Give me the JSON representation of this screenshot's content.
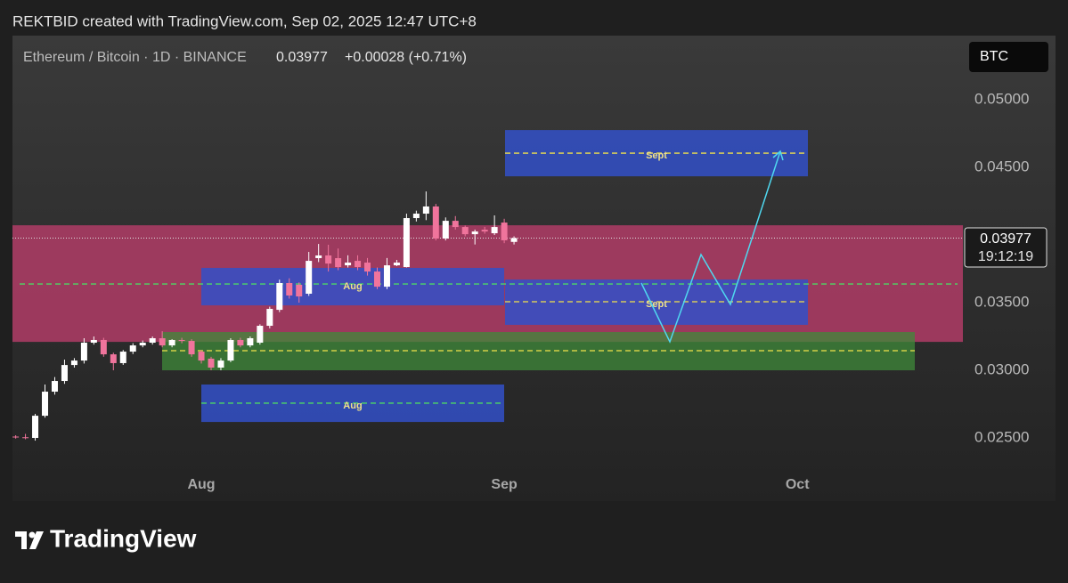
{
  "header": "REKTBID created with TradingView.com, Sep 02, 2025 12:47 UTC+8",
  "logo": "TradingView",
  "chart_data": {
    "type": "candlestick",
    "title": "Ethereum / Bitcoin · 1D · BINANCE",
    "last_price": 0.03977,
    "change_label": "+0.00028 (+0.71%)",
    "countdown": "19:12:19",
    "currency": "BTC",
    "up_color": "#ffffff",
    "down_color": "#f0749c",
    "categories": [
      null,
      null,
      null,
      null,
      null,
      null,
      null,
      null,
      null,
      null,
      null,
      null,
      null,
      null,
      null,
      null,
      null,
      null,
      null,
      "Aug",
      null,
      null,
      null,
      null,
      null,
      null,
      null,
      null,
      null,
      null,
      null,
      null,
      null,
      null,
      null,
      null,
      null,
      null,
      null,
      null,
      null,
      null,
      null,
      null,
      null,
      null,
      null,
      null,
      null,
      null,
      "Sep",
      null,
      null,
      null,
      null,
      null,
      null,
      null,
      null,
      null,
      null,
      null,
      null,
      null,
      null,
      null,
      null,
      null,
      null,
      null,
      null,
      null,
      null,
      null,
      null,
      null,
      null,
      null,
      null,
      null,
      "Oct"
    ],
    "open": [
      0.0251,
      0.02505,
      0.025,
      0.02664,
      0.02842,
      0.02921,
      0.03039,
      0.03072,
      0.03204,
      0.03224,
      0.03118,
      0.03053,
      0.03138,
      0.03184,
      0.03204,
      0.03237,
      0.03184,
      0.03224,
      0.03217,
      0.03138,
      0.03086,
      0.0302,
      0.03072,
      0.03224,
      0.03184,
      0.03204,
      0.03329,
      0.03447,
      0.03645,
      0.03632,
      0.03566,
      0.03829,
      0.03849,
      0.03829,
      0.03776,
      0.03809,
      0.03796,
      0.0373,
      0.03618,
      0.03776,
      0.03763,
      0.04125,
      0.04158,
      0.04211,
      0.03974,
      0.04105,
      0.04059,
      0.04006,
      0.04039,
      0.04013,
      0.04092,
      0.03949,
      null,
      null,
      null,
      null,
      null,
      null,
      null,
      null,
      null,
      null,
      null,
      null,
      null,
      null,
      null,
      null,
      null,
      null,
      null,
      null,
      null,
      null,
      null,
      null,
      null,
      null,
      null,
      null,
      null
    ],
    "high": [
      0.0252,
      0.0253,
      0.02678,
      0.02895,
      0.0295,
      0.03079,
      0.0309,
      0.03237,
      0.0325,
      0.0324,
      0.0313,
      0.0315,
      0.032,
      0.0322,
      0.0325,
      0.03289,
      0.0323,
      0.0324,
      0.0323,
      0.0315,
      0.031,
      0.0309,
      0.03237,
      0.0324,
      0.0325,
      0.0334,
      0.0347,
      0.0367,
      0.0368,
      0.0365,
      0.03875,
      0.03934,
      0.03928,
      0.039,
      0.0385,
      0.0385,
      0.0383,
      0.0376,
      0.0383,
      0.03816,
      0.04158,
      0.0418,
      0.04322,
      0.0423,
      0.0413,
      0.0414,
      0.0407,
      0.0404,
      0.0406,
      0.04145,
      0.0412,
      0.0399,
      null,
      null,
      null,
      null,
      null,
      null,
      null,
      null,
      null,
      null,
      null,
      null,
      null,
      null,
      null,
      null,
      null,
      null,
      null,
      null,
      null,
      null,
      null,
      null,
      null,
      null,
      null,
      null,
      null
    ],
    "low": [
      0.02495,
      0.0249,
      0.0248,
      0.0265,
      0.0282,
      0.029,
      0.0302,
      0.0305,
      0.0319,
      0.031,
      0.03,
      0.0304,
      0.0312,
      0.0317,
      0.0319,
      0.0317,
      0.0317,
      0.032,
      0.031,
      0.0305,
      0.03,
      0.03,
      0.0306,
      0.0317,
      0.0317,
      0.0319,
      0.0331,
      0.0343,
      0.0353,
      0.035,
      0.0355,
      0.038,
      0.0373,
      0.0374,
      0.0376,
      0.0374,
      0.037,
      0.036,
      0.036,
      0.0377,
      0.0376,
      0.041,
      0.0411,
      0.0396,
      0.0396,
      0.0404,
      0.0399,
      0.0393,
      0.0401,
      0.04,
      0.0394,
      0.0393,
      null,
      null,
      null,
      null,
      null,
      null,
      null,
      null,
      null,
      null,
      null,
      null,
      null,
      null,
      null,
      null,
      null,
      null,
      null,
      null,
      null,
      null,
      null,
      null,
      null,
      null,
      null,
      null,
      null
    ],
    "close": [
      0.02505,
      0.025,
      0.02664,
      0.02842,
      0.02921,
      0.03039,
      0.03072,
      0.03204,
      0.03224,
      0.03118,
      0.03053,
      0.03138,
      0.03184,
      0.03204,
      0.03237,
      0.03184,
      0.03224,
      0.03217,
      0.03118,
      0.03072,
      0.0302,
      0.03072,
      0.03224,
      0.03184,
      0.03237,
      0.03329,
      0.03454,
      0.03645,
      0.03553,
      0.03546,
      0.03809,
      0.03849,
      0.03789,
      0.03763,
      0.03796,
      0.03763,
      0.0373,
      0.03618,
      0.03776,
      0.03796,
      0.04125,
      0.04158,
      0.04211,
      0.03974,
      0.04105,
      0.04059,
      0.04006,
      0.04026,
      0.04026,
      0.04059,
      0.03961,
      0.03977,
      null,
      null,
      null,
      null,
      null,
      null,
      null,
      null,
      null,
      null,
      null,
      null,
      null,
      null,
      null,
      null,
      null,
      null,
      null,
      null,
      null,
      null,
      null,
      null,
      null,
      null,
      null,
      null,
      null
    ],
    "ylim": [
      0.02033,
      0.05474
    ],
    "yticks": [
      {
        "value": 0.025,
        "label": "0.02500"
      },
      {
        "value": 0.03,
        "label": "0.03000"
      },
      {
        "value": 0.035,
        "label": "0.03500"
      },
      {
        "value": 0.045,
        "label": "0.04500"
      },
      {
        "value": 0.05,
        "label": "0.05000"
      }
    ],
    "zones": [
      {
        "low": 0.0321,
        "high": 0.04072,
        "color": "#b03c66"
      },
      {
        "low": 0.03,
        "high": 0.03283,
        "mid": 0.03145,
        "color": "#3f8a3a",
        "line_color": "#f2e24a"
      },
      {
        "label": "Aug",
        "low": 0.0348,
        "high": 0.03757,
        "mid": 0.03638,
        "color": "#3350c8",
        "line_color": "#4cd964"
      },
      {
        "label": "Aug",
        "low": 0.02618,
        "high": 0.02895,
        "mid": 0.02757,
        "color": "#3350c8",
        "line_color": "#4cd964"
      },
      {
        "label": "Sept",
        "low": 0.04434,
        "high": 0.04776,
        "mid": 0.04605,
        "color": "#3350c8",
        "line_color": "#f2e24a"
      },
      {
        "label": "Sept",
        "low": 0.03336,
        "high": 0.03671,
        "mid": 0.03507,
        "color": "#3350c8",
        "line_color": "#f2e24a"
      }
    ]
  }
}
